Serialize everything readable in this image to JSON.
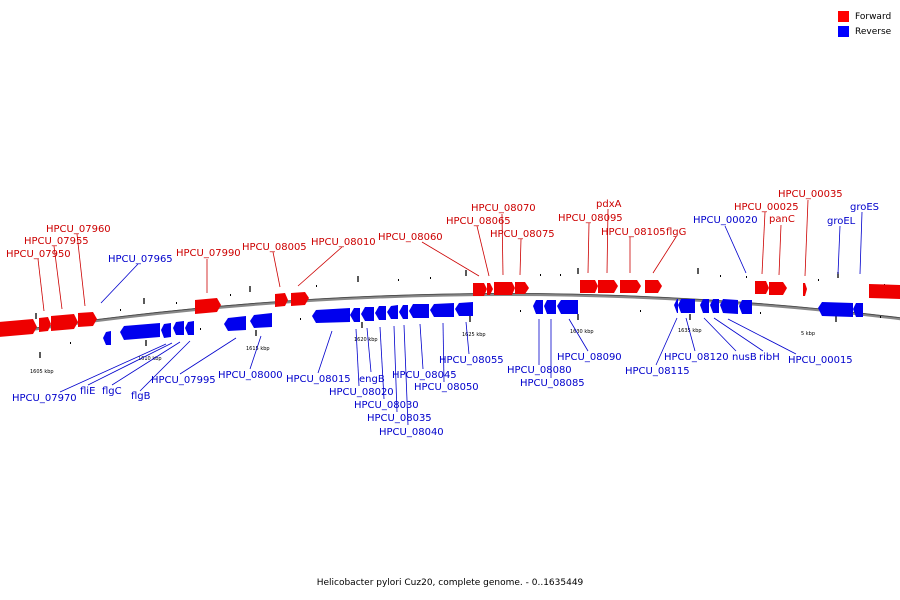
{
  "legend": {
    "forward": {
      "label": "Forward",
      "color": "#ff0000"
    },
    "reverse": {
      "label": "Reverse",
      "color": "#0000ff"
    }
  },
  "caption": "Helicobacter pylori Cuz20, complete genome. - 0..1635449",
  "backbone_color": "#888888",
  "ticks": [
    "1605 kbp",
    "1610 kbp",
    "1615 kbp",
    "1620 kbp",
    "1625 kbp",
    "1630 kbp",
    "1635 kbp",
    "5 kbp"
  ],
  "forward_labels": [
    "HPCU_07950",
    "HPCU_07955",
    "HPCU_07960",
    "HPCU_07990",
    "HPCU_08005",
    "HPCU_08010",
    "HPCU_08060",
    "HPCU_08065",
    "HPCU_08070",
    "HPCU_08075",
    "HPCU_08095",
    "pdxA",
    "HPCU_08105",
    "flgG",
    "HPCU_00025",
    "panC",
    "HPCU_00035"
  ],
  "reverse_labels": [
    "HPCU_07965",
    "HPCU_07970",
    "fliE",
    "flgC",
    "flgB",
    "HPCU_07995",
    "HPCU_08000",
    "HPCU_08015",
    "engB",
    "HPCU_08020",
    "HPCU_08030",
    "HPCU_08035",
    "HPCU_08040",
    "HPCU_08045",
    "HPCU_08050",
    "HPCU_08055",
    "HPCU_08080",
    "HPCU_08085",
    "HPCU_08090",
    "HPCU_00020",
    "HPCU_08115",
    "HPCU_08120",
    "nusB",
    "ribH",
    "HPCU_00015",
    "groEL",
    "groES"
  ]
}
